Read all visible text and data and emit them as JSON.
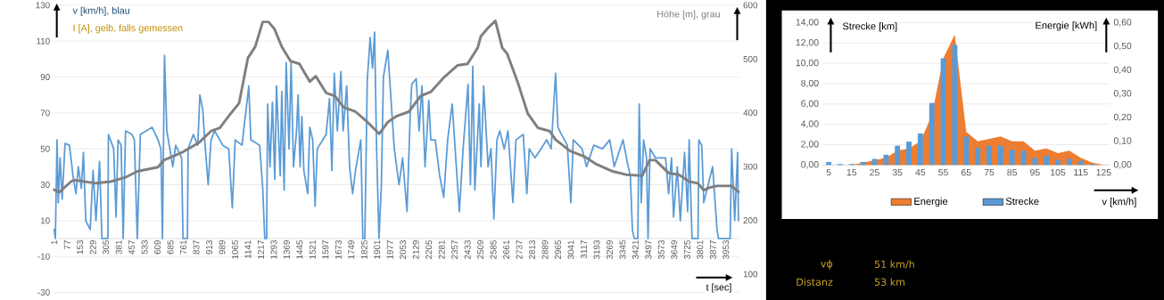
{
  "chart_data": [
    {
      "type": "line",
      "ylabel": "v [km/h], blau",
      "y2label": "Höhe [m], grau",
      "xlabel": "t [sec]",
      "annotations": [
        "I [A], gelb, falls gemessen"
      ],
      "xlim": [
        1,
        4030
      ],
      "xticks": [
        1,
        77,
        153,
        229,
        305,
        381,
        457,
        533,
        609,
        685,
        761,
        837,
        913,
        989,
        1065,
        1141,
        1217,
        1293,
        1369,
        1445,
        1521,
        1597,
        1673,
        1749,
        1825,
        1901,
        1977,
        2053,
        2129,
        2205,
        2281,
        2357,
        2433,
        2509,
        2585,
        2661,
        2737,
        2813,
        2889,
        2965,
        3041,
        3117,
        3193,
        3269,
        3345,
        3421,
        3497,
        3573,
        3649,
        3725,
        3801,
        3877,
        3953
      ],
      "ylim": [
        -30,
        130
      ],
      "yticks": [
        -30,
        -10,
        10,
        30,
        50,
        70,
        90,
        110,
        130
      ],
      "y2lim": [
        66,
        600
      ],
      "y2ticks": [
        100,
        200,
        300,
        400,
        500,
        600
      ],
      "grid": "y",
      "series": [
        {
          "color": "#5b9bd5",
          "x": [
            1,
            8,
            18,
            25,
            36,
            48,
            65,
            91,
            112,
            129,
            143,
            161,
            173,
            187,
            213,
            230,
            247,
            268,
            282,
            317,
            320,
            351,
            365,
            377,
            395,
            407,
            421,
            459,
            473,
            490,
            508,
            577,
            612,
            629,
            638,
            650,
            664,
            699,
            716,
            751,
            759,
            785,
            789,
            820,
            846,
            858,
            875,
            889,
            907,
            924,
            945,
            993,
            1028,
            1049,
            1066,
            1106,
            1146,
            1158,
            1210,
            1228,
            1240,
            1251,
            1257,
            1271,
            1285,
            1299,
            1309,
            1331,
            1340,
            1354,
            1366,
            1383,
            1395,
            1409,
            1427,
            1436,
            1448,
            1458,
            1470,
            1493,
            1505,
            1522,
            1536,
            1549,
            1601,
            1621,
            1635,
            1649,
            1667,
            1688,
            1701,
            1722,
            1739,
            1757,
            1774,
            1805,
            1817,
            1829,
            1843,
            1860,
            1874,
            1886,
            1898,
            1912,
            1926,
            1938,
            1964,
            1981,
            2002,
            2030,
            2051,
            2077,
            2096,
            2105,
            2131,
            2148,
            2165,
            2183,
            2205,
            2217,
            2243,
            2269,
            2293,
            2316,
            2343,
            2360,
            2385,
            2407,
            2436,
            2450,
            2464,
            2476,
            2502,
            2512,
            2528,
            2554,
            2571,
            2588,
            2606,
            2623,
            2649,
            2671,
            2700,
            2718,
            2761,
            2782,
            2796,
            2830,
            2865,
            2899,
            2925,
            2951,
            2965,
            2986,
            3020,
            3041,
            3055,
            3107,
            3133,
            3176,
            3227,
            3270,
            3296,
            3348,
            3374,
            3391,
            3403,
            3414,
            3435,
            3443,
            3455,
            3469,
            3486,
            3495,
            3507,
            3538,
            3598,
            3616,
            3633,
            3645,
            3667,
            3685,
            3710,
            3728,
            3737,
            3754,
            3789,
            3794,
            3811,
            3823,
            3849,
            3875,
            3901,
            3909,
            3978,
            3987,
            4005,
            4022,
            4027
          ],
          "values": [
            5,
            0,
            55,
            20,
            45,
            22,
            53,
            52,
            35,
            25,
            40,
            28,
            48,
            10,
            5,
            38,
            10,
            43,
            0,
            0,
            58,
            50,
            12,
            55,
            52,
            0,
            60,
            58,
            55,
            0,
            58,
            62,
            55,
            50,
            0,
            102,
            60,
            40,
            52,
            45,
            0,
            0,
            50,
            58,
            52,
            80,
            72,
            52,
            30,
            55,
            60,
            52,
            50,
            17,
            55,
            52,
            85,
            55,
            52,
            28,
            0,
            0,
            75,
            40,
            76,
            33,
            85,
            35,
            82,
            27,
            98,
            50,
            98,
            40,
            60,
            80,
            40,
            68,
            38,
            25,
            62,
            55,
            18,
            50,
            58,
            78,
            38,
            92,
            60,
            93,
            60,
            85,
            40,
            25,
            38,
            55,
            0,
            0,
            88,
            112,
            95,
            115,
            50,
            0,
            30,
            90,
            105,
            80,
            50,
            30,
            45,
            15,
            70,
            86,
            89,
            60,
            85,
            40,
            77,
            55,
            55,
            35,
            23,
            55,
            75,
            50,
            15,
            50,
            86,
            30,
            96,
            27,
            75,
            40,
            85,
            40,
            50,
            11,
            55,
            60,
            50,
            60,
            20,
            55,
            58,
            25,
            50,
            45,
            50,
            55,
            50,
            92,
            62,
            58,
            52,
            20,
            55,
            50,
            40,
            52,
            50,
            55,
            40,
            55,
            42,
            35,
            5,
            0,
            0,
            75,
            20,
            55,
            45,
            0,
            50,
            45,
            45,
            25,
            45,
            12,
            40,
            10,
            48,
            15,
            55,
            0,
            0,
            55,
            52,
            20,
            30,
            40,
            5,
            0,
            0,
            50,
            10,
            48,
            10
          ]
        },
        {
          "color": "#7f7f7f",
          "axis": "y2",
          "x": [
            1,
            30,
            100,
            117,
            247,
            334,
            421,
            490,
            612,
            647,
            751,
            855,
            924,
            976,
            1028,
            1089,
            1141,
            1184,
            1228,
            1262,
            1297,
            1340,
            1392,
            1444,
            1479,
            1505,
            1540,
            1601,
            1653,
            1705,
            1774,
            1843,
            1913,
            1965,
            2017,
            2088,
            2157,
            2217,
            2295,
            2373,
            2433,
            2493,
            2511,
            2554,
            2597,
            2637,
            2666,
            2727,
            2787,
            2847,
            2916,
            2951,
            3037,
            3124,
            3193,
            3288,
            3366,
            3461,
            3504,
            3538,
            3616,
            3676,
            3737,
            3789,
            3823,
            3858,
            3901,
            3987,
            4027
          ],
          "values": [
            257,
            252,
            272,
            275,
            269,
            272,
            280,
            291,
            299,
            312,
            326,
            345,
            366,
            372,
            394,
            418,
            502,
            523,
            569,
            569,
            556,
            523,
            496,
            491,
            472,
            458,
            468,
            437,
            431,
            410,
            402,
            383,
            361,
            383,
            394,
            402,
            431,
            439,
            466,
            488,
            491,
            521,
            542,
            558,
            571,
            521,
            510,
            458,
            399,
            372,
            366,
            350,
            329,
            318,
            304,
            291,
            285,
            283,
            312,
            312,
            288,
            285,
            272,
            269,
            256,
            261,
            264,
            264,
            253
          ]
        }
      ]
    },
    {
      "type": "bar",
      "ylabel": "Strecke [km]",
      "y2label": "Energie [kWh]",
      "xlabel": "v [km/h]",
      "categories": [
        "5",
        null,
        "15",
        null,
        "25",
        null,
        "35",
        null,
        "45",
        null,
        "55",
        null,
        "65",
        null,
        "75",
        null,
        "85",
        null,
        "95",
        null,
        "105",
        null,
        "115",
        null,
        "125"
      ],
      "ylim": [
        0,
        14
      ],
      "yticks": [
        {
          "value": 0,
          "label": "0,00"
        },
        {
          "value": 2,
          "label": "2,00"
        },
        {
          "value": 4,
          "label": "4,00"
        },
        {
          "value": 6,
          "label": "6,00"
        },
        {
          "value": 8,
          "label": "8,00"
        },
        {
          "value": 10,
          "label": "10,00"
        },
        {
          "value": 12,
          "label": "12,00"
        },
        {
          "value": 14,
          "label": "14,00"
        }
      ],
      "y2lim": [
        0,
        0.6
      ],
      "y2ticks": [
        {
          "value": 0,
          "label": "0,00"
        },
        {
          "value": 0.1,
          "label": "0,10"
        },
        {
          "value": 0.2,
          "label": "0,20"
        },
        {
          "value": 0.3,
          "label": "0,30"
        },
        {
          "value": 0.4,
          "label": "0,40"
        },
        {
          "value": 0.5,
          "label": "0,50"
        },
        {
          "value": 0.6,
          "label": "0,60"
        }
      ],
      "grid": "y",
      "legend": "bottom",
      "series": [
        {
          "name": "Energie",
          "type": "area",
          "axis": "y2",
          "color": "#ed7d31",
          "values": [
            0,
            0,
            0,
            0.01,
            0.02,
            0.03,
            0.06,
            0.07,
            0.1,
            0.21,
            0.45,
            0.55,
            0.14,
            0.1,
            0.11,
            0.12,
            0.1,
            0.1,
            0.06,
            0.07,
            0.05,
            0.06,
            0.03,
            0.01,
            0
          ]
        },
        {
          "name": "Strecke",
          "type": "bar",
          "color": "#5b9bd5",
          "values": [
            0.3,
            0.1,
            0.1,
            0.3,
            0.6,
            1.0,
            1.9,
            2.3,
            3.1,
            6.1,
            10.5,
            11.8,
            2.8,
            1.7,
            1.9,
            1.9,
            1.5,
            1.4,
            0.7,
            0.9,
            0.5,
            0.6,
            0.4,
            0.1,
            0
          ]
        }
      ]
    },
    {
      "type": "other",
      "annotations": [
        "vϕ",
        "51 km/h",
        "Distanz",
        "53 km"
      ]
    }
  ]
}
